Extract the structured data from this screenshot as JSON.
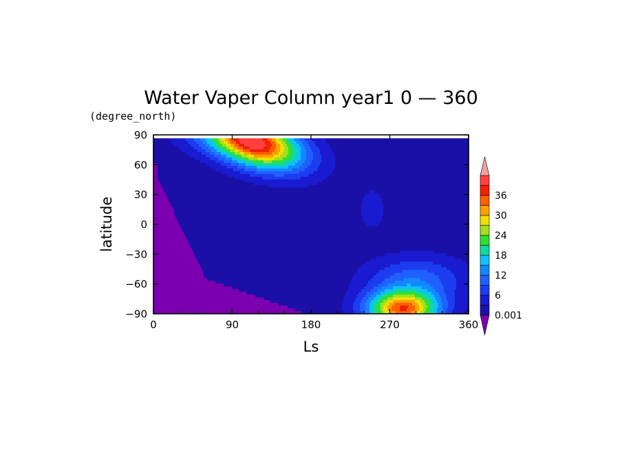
{
  "chart_data": {
    "type": "heatmap",
    "title": "Water Vaper Column year1 0 — 360",
    "subtitle": "(degree_north)",
    "xlabel": "Ls",
    "ylabel": "latitude",
    "xlim": [
      0,
      360
    ],
    "ylim": [
      -90,
      90
    ],
    "x_ticks": [
      {
        "value": 0,
        "label": "0"
      },
      {
        "value": 90,
        "label": "90"
      },
      {
        "value": 180,
        "label": "180"
      },
      {
        "value": 270,
        "label": "270"
      },
      {
        "value": 360,
        "label": "360"
      }
    ],
    "y_ticks": [
      {
        "value": 90,
        "label": "90"
      },
      {
        "value": 60,
        "label": "60"
      },
      {
        "value": 30,
        "label": "30"
      },
      {
        "value": 0,
        "label": "0"
      },
      {
        "value": -30,
        "label": "−30"
      },
      {
        "value": -60,
        "label": "−60"
      },
      {
        "value": -90,
        "label": "−90"
      }
    ],
    "colorbar": {
      "levels": [
        0.001,
        3,
        6,
        9,
        12,
        15,
        18,
        21,
        24,
        27,
        30,
        33,
        36,
        39
      ],
      "labels": [
        {
          "value": 0.001,
          "label": "0.001"
        },
        {
          "value": 6,
          "label": "6"
        },
        {
          "value": 12,
          "label": "12"
        },
        {
          "value": 18,
          "label": "18"
        },
        {
          "value": 24,
          "label": "24"
        },
        {
          "value": 30,
          "label": "30"
        },
        {
          "value": 36,
          "label": "36"
        }
      ],
      "colors": [
        "#7a00b0",
        "#1a10a8",
        "#1a1ad0",
        "#1c3cf0",
        "#2060ff",
        "#1488ff",
        "#10c0ff",
        "#10d8a0",
        "#30e030",
        "#a0e020",
        "#f0e000",
        "#ffa000",
        "#ff6000",
        "#f02000",
        "#ff4040",
        "#f4a0a0"
      ]
    },
    "fields": [
      {
        "name": "nh_summer_max",
        "x": 120,
        "y": 82,
        "peak": 40
      },
      {
        "name": "sh_summer_max",
        "x": 285,
        "y": -85,
        "peak": 34
      },
      {
        "name": "equatorial_band",
        "x": 250,
        "y": 15,
        "peak": 4
      }
    ]
  }
}
